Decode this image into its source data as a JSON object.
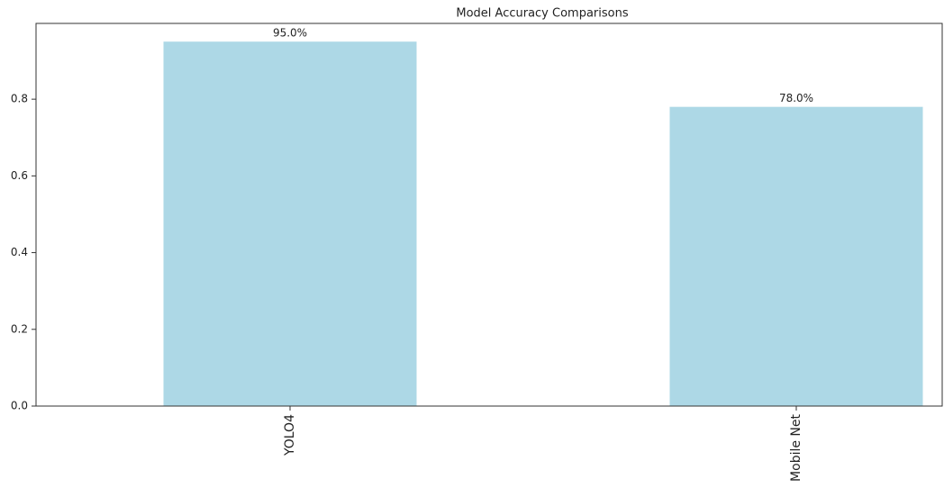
{
  "chart_data": {
    "type": "bar",
    "title": "Model Accuracy Comparisons",
    "categories": [
      "YOLO4",
      "Mobile Net"
    ],
    "values": [
      0.95,
      0.78
    ],
    "value_labels": [
      "95.0%",
      "78.0%"
    ],
    "color": "#add8e6",
    "ylim": [
      0,
      0.9975
    ],
    "yticks": [
      {
        "value": 0,
        "label": "0.0"
      },
      0.2,
      0.4,
      0.6,
      0.8
    ]
  }
}
